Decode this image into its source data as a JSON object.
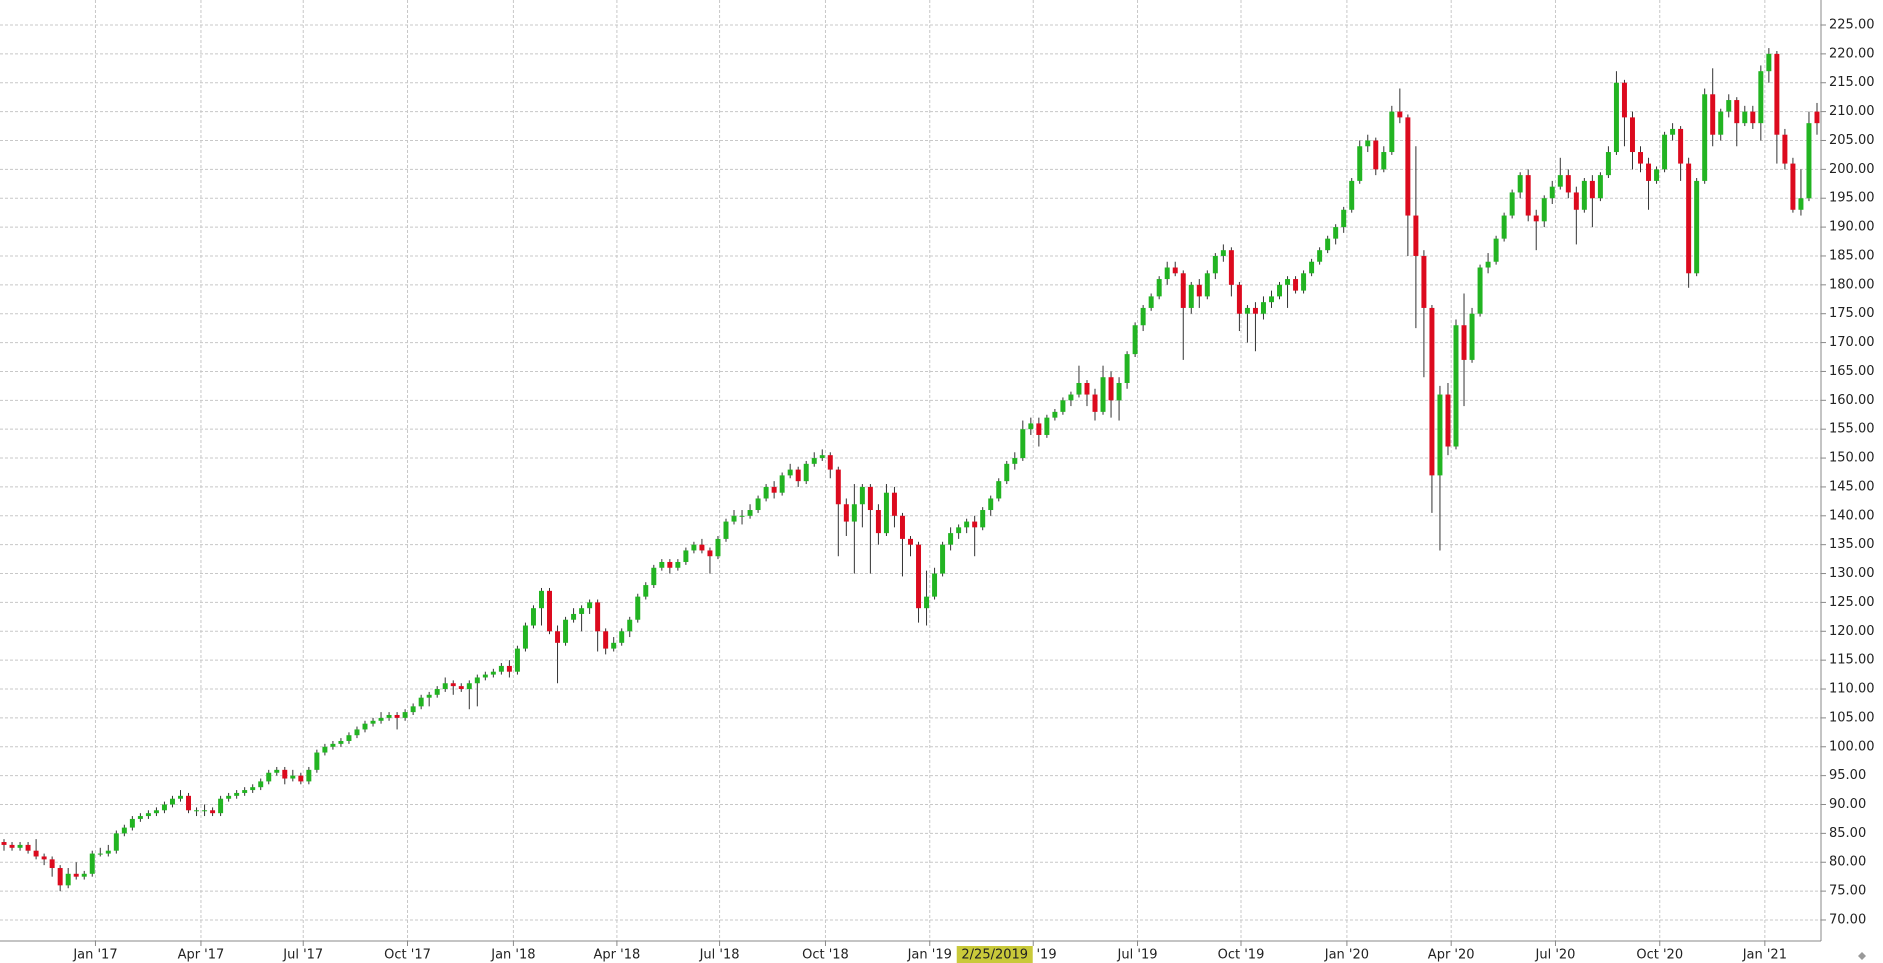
{
  "chart_data": {
    "type": "candlestick",
    "up_color": "#22b422",
    "down_color": "#dc0a1e",
    "grid": true,
    "xlim": [
      -0.5,
      226.5
    ],
    "ylim": [
      66.36,
      229.33
    ],
    "xticks": [
      {
        "value": 11.4,
        "label": "Jan '17"
      },
      {
        "value": 24.55,
        "label": "Apr '17"
      },
      {
        "value": 37.3,
        "label": "Jul '17"
      },
      {
        "value": 50.3,
        "label": "Oct '17"
      },
      {
        "value": 63.5,
        "label": "Jan '18"
      },
      {
        "value": 76.4,
        "label": "Apr '18"
      },
      {
        "value": 89.2,
        "label": "Jul '18"
      },
      {
        "value": 102.4,
        "label": "Oct '18"
      },
      {
        "value": 115.4,
        "label": "Jan '19"
      },
      {
        "value": 128.3,
        "label": "Apr '19"
      },
      {
        "value": 141.3,
        "label": "Jul '19"
      },
      {
        "value": 154.2,
        "label": "Oct '19"
      },
      {
        "value": 167.4,
        "label": "Jan '20"
      },
      {
        "value": 180.4,
        "label": "Apr '20"
      },
      {
        "value": 193.4,
        "label": "Jul '20"
      },
      {
        "value": 206.4,
        "label": "Oct '20"
      },
      {
        "value": 219.5,
        "label": "Jan '21"
      }
    ],
    "yticks": [
      {
        "value": 70,
        "label": "70.00"
      },
      {
        "value": 75,
        "label": "75.00"
      },
      {
        "value": 80,
        "label": "80.00"
      },
      {
        "value": 85,
        "label": "85.00"
      },
      {
        "value": 90,
        "label": "90.00"
      },
      {
        "value": 95,
        "label": "95.00"
      },
      {
        "value": 100,
        "label": "100.00"
      },
      {
        "value": 105,
        "label": "105.00"
      },
      {
        "value": 110,
        "label": "110.00"
      },
      {
        "value": 115,
        "label": "115.00"
      },
      {
        "value": 120,
        "label": "120.00"
      },
      {
        "value": 125,
        "label": "125.00"
      },
      {
        "value": 130,
        "label": "130.00"
      },
      {
        "value": 135,
        "label": "135.00"
      },
      {
        "value": 140,
        "label": "140.00"
      },
      {
        "value": 145,
        "label": "145.00"
      },
      {
        "value": 150,
        "label": "150.00"
      },
      {
        "value": 155,
        "label": "155.00"
      },
      {
        "value": 160,
        "label": "160.00"
      },
      {
        "value": 165,
        "label": "165.00"
      },
      {
        "value": 170,
        "label": "170.00"
      },
      {
        "value": 175,
        "label": "175.00"
      },
      {
        "value": 180,
        "label": "180.00"
      },
      {
        "value": 185,
        "label": "185.00"
      },
      {
        "value": 190,
        "label": "190.00"
      },
      {
        "value": 195,
        "label": "195.00"
      },
      {
        "value": 200,
        "label": "200.00"
      },
      {
        "value": 205,
        "label": "205.00"
      },
      {
        "value": 210,
        "label": "210.00"
      },
      {
        "value": 215,
        "label": "215.00"
      },
      {
        "value": 220,
        "label": "220.00"
      },
      {
        "value": 225,
        "label": "225.00"
      }
    ],
    "cursor": {
      "value": 123.5,
      "label": "2/25/2019"
    },
    "candles": [
      [
        83.5,
        84,
        82,
        83
      ],
      [
        83,
        83.5,
        82,
        82.5
      ],
      [
        82.5,
        83.5,
        82,
        83
      ],
      [
        83,
        83.5,
        81.5,
        82
      ],
      [
        82,
        84,
        80.5,
        81
      ],
      [
        81,
        81.5,
        79.5,
        80.5
      ],
      [
        80.5,
        81,
        77.5,
        79
      ],
      [
        79,
        79.5,
        75,
        76
      ],
      [
        76,
        79,
        75.5,
        78
      ],
      [
        78,
        80,
        77,
        77.5
      ],
      [
        77.5,
        78.5,
        77,
        78
      ],
      [
        78,
        82,
        77.5,
        81.5
      ],
      [
        81.5,
        82.5,
        81,
        81.5
      ],
      [
        81.5,
        83,
        81,
        82
      ],
      [
        82,
        85.5,
        81.5,
        85
      ],
      [
        85,
        86.5,
        84.5,
        86
      ],
      [
        86,
        88,
        85.5,
        87.5
      ],
      [
        87.5,
        88.5,
        87,
        88
      ],
      [
        88,
        89,
        87.5,
        88.5
      ],
      [
        88.5,
        89.5,
        88,
        89
      ],
      [
        89,
        90.5,
        88.5,
        90
      ],
      [
        90,
        91.5,
        89.5,
        91
      ],
      [
        91,
        92.5,
        90.5,
        91.5
      ],
      [
        91.5,
        92,
        88.5,
        89
      ],
      [
        89,
        89.5,
        88,
        89
      ],
      [
        89,
        90,
        88,
        89
      ],
      [
        89,
        89.5,
        88,
        88.5
      ],
      [
        88.5,
        91.5,
        88,
        91
      ],
      [
        91,
        92,
        90.5,
        91.5
      ],
      [
        91.5,
        92.5,
        91,
        92
      ],
      [
        92,
        93,
        91.5,
        92.5
      ],
      [
        92.5,
        93.5,
        92,
        93
      ],
      [
        93,
        94.5,
        92.5,
        94
      ],
      [
        94,
        96,
        93.5,
        95.5
      ],
      [
        95.5,
        96.5,
        95,
        96
      ],
      [
        96,
        96.5,
        93.5,
        94.5
      ],
      [
        94.5,
        96,
        94,
        95
      ],
      [
        95,
        95.5,
        93.5,
        94
      ],
      [
        94,
        96.5,
        93.5,
        96
      ],
      [
        96,
        99.5,
        95.5,
        99
      ],
      [
        99,
        100.5,
        98.5,
        100
      ],
      [
        100,
        101,
        99.5,
        100.5
      ],
      [
        100.5,
        101.5,
        100,
        101
      ],
      [
        101,
        102.5,
        100.5,
        102
      ],
      [
        102,
        103.5,
        101.5,
        103
      ],
      [
        103,
        104.5,
        102.5,
        104
      ],
      [
        104,
        105,
        103.5,
        104.5
      ],
      [
        104.5,
        106,
        104,
        105
      ],
      [
        105,
        106,
        104.5,
        105.5
      ],
      [
        105.5,
        106,
        103,
        105
      ],
      [
        105,
        106.5,
        104.5,
        106
      ],
      [
        106,
        107.5,
        105.5,
        107
      ],
      [
        107,
        109,
        106.5,
        108.5
      ],
      [
        108.5,
        109.5,
        107,
        109
      ],
      [
        109,
        110.5,
        108.5,
        110
      ],
      [
        110,
        112,
        109.5,
        111
      ],
      [
        111,
        111.5,
        109,
        110.5
      ],
      [
        110.5,
        111,
        109.5,
        110
      ],
      [
        110,
        111.5,
        106.5,
        111
      ],
      [
        111,
        112.5,
        107,
        112
      ],
      [
        112,
        113,
        111.5,
        112.5
      ],
      [
        112.5,
        113.5,
        112,
        113
      ],
      [
        113,
        114.5,
        112.5,
        114
      ],
      [
        114,
        115,
        112,
        113
      ],
      [
        113,
        117.5,
        112.5,
        117
      ],
      [
        117,
        121.5,
        116.5,
        121
      ],
      [
        121,
        124.5,
        120.5,
        124
      ],
      [
        124,
        127.5,
        121,
        127
      ],
      [
        127,
        127.5,
        119.5,
        120
      ],
      [
        120,
        121,
        111,
        118
      ],
      [
        118,
        122.5,
        117.5,
        122
      ],
      [
        122,
        124,
        121.5,
        123
      ],
      [
        123,
        124.5,
        120,
        124
      ],
      [
        124,
        125.5,
        123,
        125
      ],
      [
        125,
        125.5,
        116.5,
        120
      ],
      [
        120,
        120.5,
        116,
        117
      ],
      [
        117,
        119,
        116.5,
        118
      ],
      [
        118,
        120.5,
        117.5,
        120
      ],
      [
        120,
        122.5,
        119,
        122
      ],
      [
        122,
        126.5,
        121.5,
        126
      ],
      [
        126,
        128.5,
        125.5,
        128
      ],
      [
        128,
        131.5,
        127.5,
        131
      ],
      [
        131,
        132.5,
        130.5,
        132
      ],
      [
        132,
        132.5,
        130,
        131
      ],
      [
        131,
        132.5,
        130.5,
        132
      ],
      [
        132,
        134.5,
        131.5,
        134
      ],
      [
        134,
        135.5,
        133.5,
        135
      ],
      [
        135,
        136,
        133.5,
        134
      ],
      [
        134,
        134.5,
        130,
        133
      ],
      [
        133,
        136.5,
        132.5,
        136
      ],
      [
        136,
        139.5,
        135.5,
        139
      ],
      [
        139,
        141,
        138.5,
        140
      ],
      [
        140,
        141,
        138.5,
        140
      ],
      [
        140,
        142,
        139.5,
        141
      ],
      [
        141,
        143.5,
        140.5,
        143
      ],
      [
        143,
        145.5,
        142.5,
        145
      ],
      [
        145,
        146,
        143,
        144
      ],
      [
        144,
        147.5,
        143.5,
        147
      ],
      [
        147,
        149,
        146.5,
        148
      ],
      [
        148,
        148.5,
        145,
        146
      ],
      [
        146,
        149.5,
        145.5,
        149
      ],
      [
        149,
        151,
        148.5,
        150
      ],
      [
        150,
        151.5,
        149.5,
        150.5
      ],
      [
        150.5,
        151,
        146.5,
        148
      ],
      [
        148,
        148.5,
        133,
        142
      ],
      [
        142,
        143,
        136.5,
        139
      ],
      [
        139,
        145.5,
        130,
        142
      ],
      [
        142,
        145.5,
        138,
        145
      ],
      [
        145,
        145.5,
        130,
        141
      ],
      [
        141,
        142,
        135,
        137
      ],
      [
        137,
        145.5,
        136.5,
        144
      ],
      [
        144,
        145,
        138,
        140
      ],
      [
        140,
        140.5,
        129.5,
        136
      ],
      [
        136,
        136.5,
        133,
        135
      ],
      [
        135,
        135.5,
        121.5,
        124
      ],
      [
        124,
        130.5,
        121,
        126
      ],
      [
        126,
        131,
        125.5,
        130
      ],
      [
        130,
        135.5,
        129.5,
        135
      ],
      [
        135,
        138,
        134,
        137
      ],
      [
        137,
        138.5,
        136,
        138
      ],
      [
        138,
        139.5,
        137,
        139
      ],
      [
        139,
        140,
        133,
        138
      ],
      [
        138,
        141.5,
        137.5,
        141
      ],
      [
        141,
        143.5,
        140,
        143
      ],
      [
        143,
        146.5,
        142.5,
        146
      ],
      [
        146,
        149.5,
        145.5,
        149
      ],
      [
        149,
        151,
        148,
        150
      ],
      [
        150,
        156.5,
        149.5,
        155
      ],
      [
        155,
        157,
        154,
        156
      ],
      [
        156,
        157,
        152,
        154
      ],
      [
        154,
        157.5,
        153.5,
        157
      ],
      [
        157,
        158.5,
        156.5,
        158
      ],
      [
        158,
        160.5,
        157.5,
        160
      ],
      [
        160,
        161.5,
        159,
        161
      ],
      [
        161,
        166,
        160.5,
        163
      ],
      [
        163,
        163.5,
        159,
        161
      ],
      [
        161,
        162,
        156.5,
        158
      ],
      [
        158,
        166,
        157.5,
        164
      ],
      [
        164,
        165,
        157,
        160
      ],
      [
        160,
        164,
        156.5,
        163
      ],
      [
        163,
        168.5,
        162,
        168
      ],
      [
        168,
        173.5,
        167.5,
        173
      ],
      [
        173,
        176.5,
        172,
        176
      ],
      [
        176,
        178.5,
        175.5,
        178
      ],
      [
        178,
        181.5,
        177.5,
        181
      ],
      [
        181,
        184,
        180,
        183
      ],
      [
        183,
        184,
        181.5,
        182
      ],
      [
        182,
        182.5,
        167,
        176
      ],
      [
        176,
        180.5,
        175,
        180
      ],
      [
        180,
        181,
        176,
        178
      ],
      [
        178,
        182.5,
        177.5,
        182
      ],
      [
        182,
        185.5,
        181,
        185
      ],
      [
        185,
        187,
        184,
        186
      ],
      [
        186,
        186.5,
        178,
        180
      ],
      [
        180,
        180.5,
        172,
        175
      ],
      [
        175,
        176.5,
        170,
        176
      ],
      [
        176,
        177,
        168.5,
        175
      ],
      [
        175,
        178,
        174,
        177
      ],
      [
        177,
        179,
        176,
        178
      ],
      [
        178,
        180.5,
        177.5,
        180
      ],
      [
        180,
        181.5,
        176,
        181
      ],
      [
        181,
        181.5,
        178.5,
        179
      ],
      [
        179,
        182.5,
        178.5,
        182
      ],
      [
        182,
        184.5,
        181.5,
        184
      ],
      [
        184,
        186.5,
        183.5,
        186
      ],
      [
        186,
        188.5,
        185.5,
        188
      ],
      [
        188,
        190.5,
        187,
        190
      ],
      [
        190,
        193.5,
        189,
        193
      ],
      [
        193,
        198.5,
        192.5,
        198
      ],
      [
        198,
        205,
        197.5,
        204
      ],
      [
        204,
        206,
        203,
        205
      ],
      [
        205,
        205.5,
        199,
        200
      ],
      [
        200,
        204,
        199.5,
        203
      ],
      [
        203,
        211,
        202.5,
        210
      ],
      [
        210,
        214,
        208,
        209
      ],
      [
        209,
        209.5,
        185,
        192
      ],
      [
        192,
        204,
        172.5,
        185
      ],
      [
        185,
        186,
        164,
        176
      ],
      [
        176,
        176.5,
        140.5,
        147
      ],
      [
        147,
        162.5,
        134,
        161
      ],
      [
        161,
        163,
        150.5,
        152
      ],
      [
        152,
        174,
        151.5,
        173
      ],
      [
        173,
        178.5,
        159,
        167
      ],
      [
        167,
        176,
        166.5,
        175
      ],
      [
        175,
        183.5,
        174.5,
        183
      ],
      [
        183,
        185.5,
        182,
        184
      ],
      [
        184,
        188.5,
        183.5,
        188
      ],
      [
        188,
        192.5,
        187.5,
        192
      ],
      [
        192,
        196.5,
        191.5,
        196
      ],
      [
        196,
        199.5,
        195,
        199
      ],
      [
        199,
        200,
        191,
        192
      ],
      [
        192,
        193,
        186,
        191
      ],
      [
        191,
        195.5,
        190,
        195
      ],
      [
        195,
        198,
        194,
        197
      ],
      [
        197,
        202,
        196.5,
        199
      ],
      [
        199,
        200,
        195,
        196
      ],
      [
        196,
        197,
        187,
        193
      ],
      [
        193,
        198.5,
        192.5,
        198
      ],
      [
        198,
        199,
        190,
        195
      ],
      [
        195,
        199.5,
        194.5,
        199
      ],
      [
        199,
        204,
        198.5,
        203
      ],
      [
        203,
        217,
        202.5,
        215
      ],
      [
        215,
        215.5,
        204,
        209
      ],
      [
        209,
        210,
        200,
        203
      ],
      [
        203,
        204,
        199.5,
        201
      ],
      [
        201,
        202,
        193,
        198
      ],
      [
        198,
        200.5,
        197.5,
        200
      ],
      [
        200,
        206.5,
        199.5,
        206
      ],
      [
        206,
        208,
        205,
        207
      ],
      [
        207,
        207.5,
        198,
        201
      ],
      [
        201,
        202,
        179.5,
        182
      ],
      [
        182,
        198.5,
        181.5,
        198
      ],
      [
        198,
        214,
        197.5,
        213
      ],
      [
        213,
        217.5,
        204,
        206
      ],
      [
        206,
        210.5,
        205,
        210
      ],
      [
        210,
        213,
        209,
        212
      ],
      [
        212,
        212.5,
        204,
        208
      ],
      [
        208,
        211,
        207.5,
        210
      ],
      [
        210,
        211,
        207,
        208
      ],
      [
        208,
        218,
        205,
        217
      ],
      [
        217,
        221,
        215,
        220
      ],
      [
        220,
        220.5,
        201,
        206
      ],
      [
        206,
        207,
        200,
        201
      ],
      [
        201,
        202,
        192.5,
        193
      ],
      [
        193,
        200,
        192,
        195
      ],
      [
        195,
        210,
        194.5,
        208
      ],
      [
        210,
        211.5,
        206,
        208
      ]
    ]
  }
}
